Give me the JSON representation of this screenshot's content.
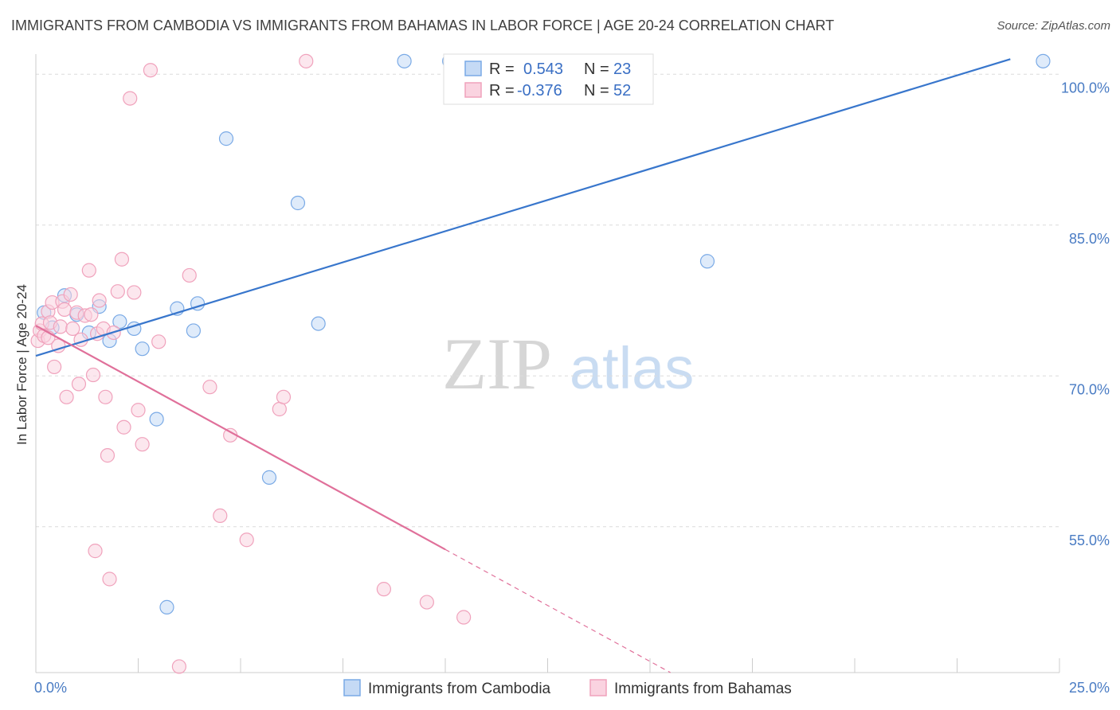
{
  "chart_data": {
    "type": "scatter",
    "title": "IMMIGRANTS FROM CAMBODIA VS IMMIGRANTS FROM BAHAMAS IN LABOR FORCE | AGE 20-24 CORRELATION CHART",
    "source": "Source: ZipAtlas.com",
    "ylabel": "In Labor Force | Age 20-24",
    "xlim": [
      0,
      25
    ],
    "ylim": [
      40.5,
      102
    ],
    "x_ticks": [
      {
        "value": 0,
        "label": "0.0%"
      },
      {
        "value": 25,
        "label": "25.0%"
      }
    ],
    "y_ticks": [
      {
        "value": 100,
        "label": "100.0%"
      },
      {
        "value": 85,
        "label": "85.0%"
      },
      {
        "value": 70,
        "label": "70.0%"
      },
      {
        "value": 55,
        "label": "55.0%"
      }
    ],
    "watermark": {
      "part1": "ZIP",
      "part2": "atlas"
    },
    "stats_legend": [
      {
        "r_label": "R =",
        "r_value": "0.543",
        "n_label": "N =",
        "n_value": "23"
      },
      {
        "r_label": "R =",
        "r_value": "-0.376",
        "n_label": "N =",
        "n_value": "52"
      }
    ],
    "series": [
      {
        "name": "Immigrants from Cambodia",
        "color": "#7aaae6",
        "fill": "#c5daf5",
        "line_color": "#3876cc",
        "trend": {
          "x0": 0,
          "y0": 72.0,
          "x1": 23.8,
          "y1": 101.5,
          "dashed_from": null
        },
        "points": [
          [
            0.2,
            76.3
          ],
          [
            0.4,
            74.8
          ],
          [
            0.7,
            78.0
          ],
          [
            1.0,
            76.1
          ],
          [
            1.3,
            74.3
          ],
          [
            1.55,
            76.9
          ],
          [
            1.8,
            73.5
          ],
          [
            2.05,
            75.4
          ],
          [
            2.4,
            74.7
          ],
          [
            2.6,
            72.7
          ],
          [
            2.95,
            65.7
          ],
          [
            3.2,
            47.0
          ],
          [
            3.45,
            76.7
          ],
          [
            3.85,
            74.5
          ],
          [
            3.95,
            77.2
          ],
          [
            4.65,
            93.6
          ],
          [
            5.7,
            59.9
          ],
          [
            6.4,
            87.2
          ],
          [
            6.9,
            75.2
          ],
          [
            9.0,
            101.3
          ],
          [
            10.1,
            101.3
          ],
          [
            16.4,
            81.4
          ],
          [
            24.6,
            101.3
          ]
        ]
      },
      {
        "name": "Immigrants from Bahamas",
        "color": "#f0a2bc",
        "fill": "#fad3e0",
        "line_color": "#e0709a",
        "trend": {
          "x0": 0,
          "y0": 75.0,
          "x1": 15.5,
          "y1": 40.5,
          "dashed_from": 10.0
        },
        "points": [
          [
            0.05,
            73.5
          ],
          [
            0.1,
            74.5
          ],
          [
            0.15,
            75.2
          ],
          [
            0.2,
            74.0
          ],
          [
            0.3,
            76.4
          ],
          [
            0.3,
            73.8
          ],
          [
            0.35,
            75.3
          ],
          [
            0.4,
            77.3
          ],
          [
            0.45,
            70.9
          ],
          [
            0.55,
            73.0
          ],
          [
            0.6,
            74.9
          ],
          [
            0.65,
            77.4
          ],
          [
            0.7,
            76.6
          ],
          [
            0.75,
            67.9
          ],
          [
            0.85,
            78.1
          ],
          [
            0.9,
            74.7
          ],
          [
            1.0,
            76.3
          ],
          [
            1.05,
            69.2
          ],
          [
            1.1,
            73.6
          ],
          [
            1.2,
            76.0
          ],
          [
            1.3,
            80.5
          ],
          [
            1.35,
            76.1
          ],
          [
            1.4,
            70.1
          ],
          [
            1.45,
            52.6
          ],
          [
            1.5,
            74.2
          ],
          [
            1.55,
            77.5
          ],
          [
            1.65,
            74.7
          ],
          [
            1.7,
            67.9
          ],
          [
            1.75,
            62.1
          ],
          [
            1.8,
            49.8
          ],
          [
            1.9,
            74.3
          ],
          [
            2.0,
            78.4
          ],
          [
            2.1,
            81.6
          ],
          [
            2.15,
            64.9
          ],
          [
            2.3,
            97.6
          ],
          [
            2.4,
            78.3
          ],
          [
            2.5,
            66.6
          ],
          [
            2.6,
            63.2
          ],
          [
            2.8,
            100.4
          ],
          [
            3.0,
            73.4
          ],
          [
            3.5,
            41.1
          ],
          [
            3.75,
            80.0
          ],
          [
            4.25,
            68.9
          ],
          [
            4.5,
            56.1
          ],
          [
            4.75,
            64.1
          ],
          [
            5.15,
            53.7
          ],
          [
            5.95,
            66.7
          ],
          [
            6.05,
            67.9
          ],
          [
            6.6,
            101.3
          ],
          [
            8.5,
            48.8
          ],
          [
            9.55,
            47.5
          ],
          [
            10.45,
            46.0
          ]
        ]
      }
    ]
  }
}
